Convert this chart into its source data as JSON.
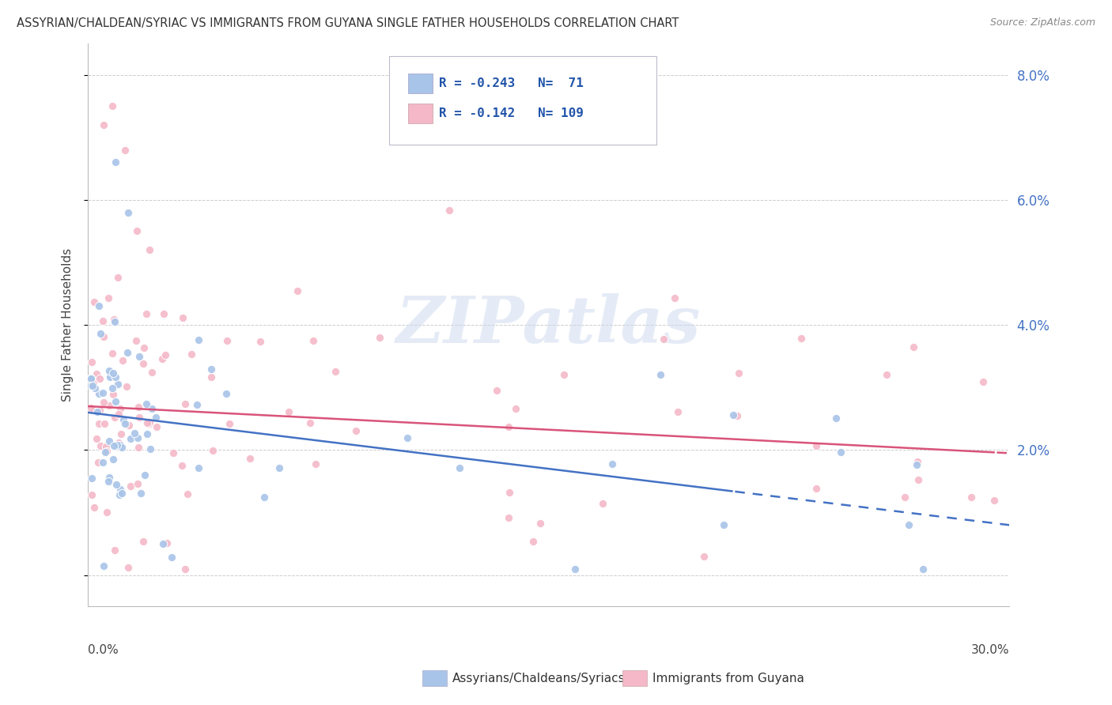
{
  "title": "ASSYRIAN/CHALDEAN/SYRIAC VS IMMIGRANTS FROM GUYANA SINGLE FATHER HOUSEHOLDS CORRELATION CHART",
  "source": "Source: ZipAtlas.com",
  "ylabel": "Single Father Households",
  "watermark": "ZIPatlas",
  "series1_label": "Assyrians/Chaldeans/Syriacs",
  "series2_label": "Immigrants from Guyana",
  "series1_color": "#a8c4e8",
  "series2_color": "#f4b8c8",
  "series1_R": -0.243,
  "series1_N": 71,
  "series2_R": -0.142,
  "series2_N": 109,
  "trend1_color": "#4472c4",
  "trend2_color": "#d9547a",
  "xmin": 0.0,
  "xmax": 0.3,
  "ymin": -0.005,
  "ymax": 0.085,
  "yticks": [
    0.0,
    0.02,
    0.04,
    0.06,
    0.08
  ],
  "ytick_labels": [
    "",
    "2.0%",
    "4.0%",
    "6.0%",
    "8.0%"
  ],
  "background_color": "#ffffff",
  "grid_color": "#cccccc",
  "title_color": "#333333",
  "right_axis_color": "#4472c4",
  "legend_text_color": "#2255aa",
  "trend1_intercept": 0.026,
  "trend1_slope": -0.06,
  "trend1_solid_end": 0.21,
  "trend2_intercept": 0.027,
  "trend2_slope": -0.025,
  "trend2_solid_end": 0.295
}
